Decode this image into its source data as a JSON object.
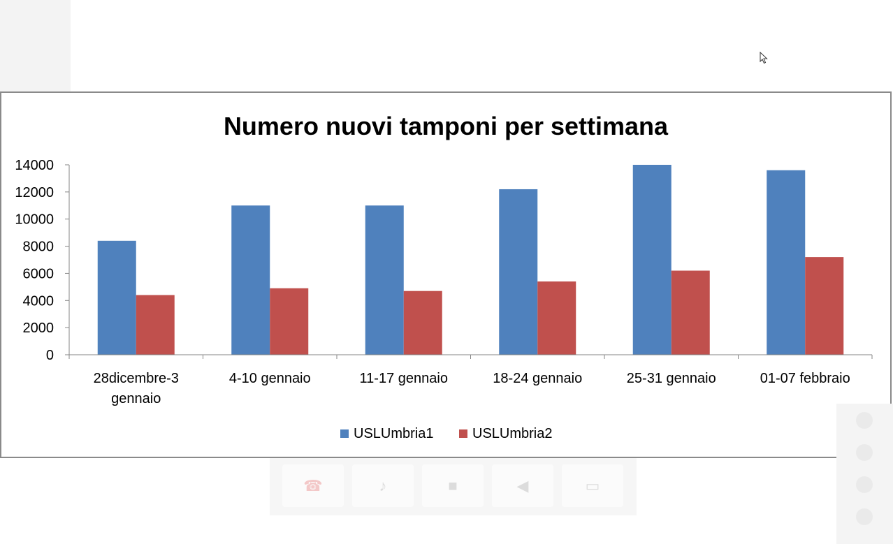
{
  "chart_data": {
    "type": "bar",
    "title": "Numero nuovi tamponi per settimana",
    "xlabel": "",
    "ylabel": "",
    "categories": [
      [
        "28dicembre-3",
        "gennaio"
      ],
      [
        "4-10 gennaio"
      ],
      [
        "11-17 gennaio"
      ],
      [
        "18-24 gennaio"
      ],
      [
        "25-31 gennaio"
      ],
      [
        "01-07 febbraio"
      ]
    ],
    "series": [
      {
        "name": "USLUmbria1",
        "color": "#4F81BD",
        "values": [
          8400,
          11000,
          11000,
          12200,
          14000,
          13600
        ]
      },
      {
        "name": "USLUmbria2",
        "color": "#C0504D",
        "values": [
          4400,
          4900,
          4700,
          5400,
          6200,
          7200
        ]
      }
    ],
    "ylim": [
      0,
      14000
    ],
    "yticks": [
      0,
      2000,
      4000,
      6000,
      8000,
      10000,
      12000,
      14000
    ],
    "grid": false,
    "legend_position": "bottom"
  },
  "call_controls": [
    {
      "name": "hangup-icon",
      "glyph": "☎"
    },
    {
      "name": "microphone-icon",
      "glyph": "♪"
    },
    {
      "name": "camera-icon",
      "glyph": "■"
    },
    {
      "name": "speaker-icon",
      "glyph": "◀"
    },
    {
      "name": "screen-share-icon",
      "glyph": "▭"
    }
  ]
}
